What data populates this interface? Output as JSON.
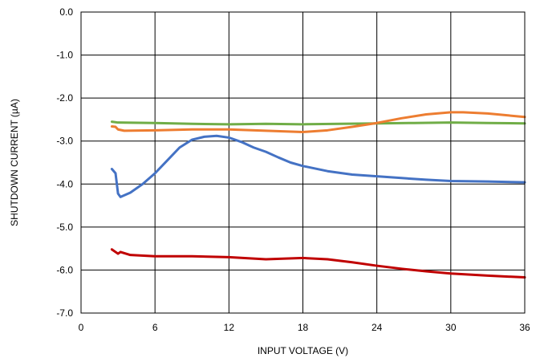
{
  "chart_data": {
    "type": "line",
    "title": "",
    "xlabel": "INPUT VOLTAGE (V)",
    "ylabel": "SHUTDOWN CURRENT (µA)",
    "xlim": [
      0,
      36
    ],
    "ylim": [
      -7,
      0
    ],
    "xticks": [
      0,
      6,
      12,
      18,
      24,
      30,
      36
    ],
    "yticks": [
      0,
      -1,
      -2,
      -3,
      -4,
      -5,
      -6,
      -7
    ],
    "xtick_labels": [
      "0",
      "6",
      "12",
      "18",
      "24",
      "30",
      "36"
    ],
    "ytick_labels": [
      "0.0",
      "-1.0",
      "-2.0",
      "-3.0",
      "-4.0",
      "-5.0",
      "-6.0",
      "-7.0"
    ],
    "grid": true,
    "legend": "none",
    "series": [
      {
        "color": "#70AD47",
        "x": [
          2.5,
          3,
          6,
          9,
          12,
          15,
          18,
          21,
          24,
          27,
          30,
          33,
          36
        ],
        "y": [
          -2.55,
          -2.57,
          -2.58,
          -2.6,
          -2.61,
          -2.6,
          -2.61,
          -2.6,
          -2.59,
          -2.58,
          -2.57,
          -2.58,
          -2.59
        ]
      },
      {
        "color": "#ED7D31",
        "x": [
          2.5,
          2.8,
          3,
          3.5,
          6,
          9,
          12,
          15,
          18,
          20,
          22,
          24,
          26,
          28,
          30,
          31,
          33,
          36
        ],
        "y": [
          -2.66,
          -2.67,
          -2.73,
          -2.76,
          -2.75,
          -2.73,
          -2.73,
          -2.76,
          -2.79,
          -2.75,
          -2.67,
          -2.58,
          -2.47,
          -2.38,
          -2.33,
          -2.33,
          -2.36,
          -2.44
        ]
      },
      {
        "color": "#4472C4",
        "x": [
          2.5,
          2.8,
          3.0,
          3.2,
          4,
          5,
          6,
          7,
          8,
          9,
          10,
          11,
          12,
          13,
          14,
          15,
          16,
          17,
          18,
          20,
          22,
          24,
          26,
          28,
          30,
          33,
          36
        ],
        "y": [
          -3.65,
          -3.75,
          -4.22,
          -4.3,
          -4.2,
          -4.0,
          -3.75,
          -3.45,
          -3.15,
          -2.97,
          -2.9,
          -2.88,
          -2.92,
          -3.02,
          -3.15,
          -3.25,
          -3.38,
          -3.5,
          -3.58,
          -3.7,
          -3.78,
          -3.82,
          -3.86,
          -3.9,
          -3.93,
          -3.94,
          -3.96
        ]
      },
      {
        "color": "#C00000",
        "x": [
          2.5,
          2.8,
          3.0,
          3.2,
          4,
          6,
          9,
          12,
          15,
          18,
          20,
          22,
          24,
          26,
          28,
          30,
          33,
          36
        ],
        "y": [
          -5.52,
          -5.58,
          -5.62,
          -5.58,
          -5.65,
          -5.68,
          -5.68,
          -5.7,
          -5.75,
          -5.72,
          -5.75,
          -5.82,
          -5.9,
          -5.97,
          -6.03,
          -6.08,
          -6.13,
          -6.17
        ]
      }
    ]
  }
}
